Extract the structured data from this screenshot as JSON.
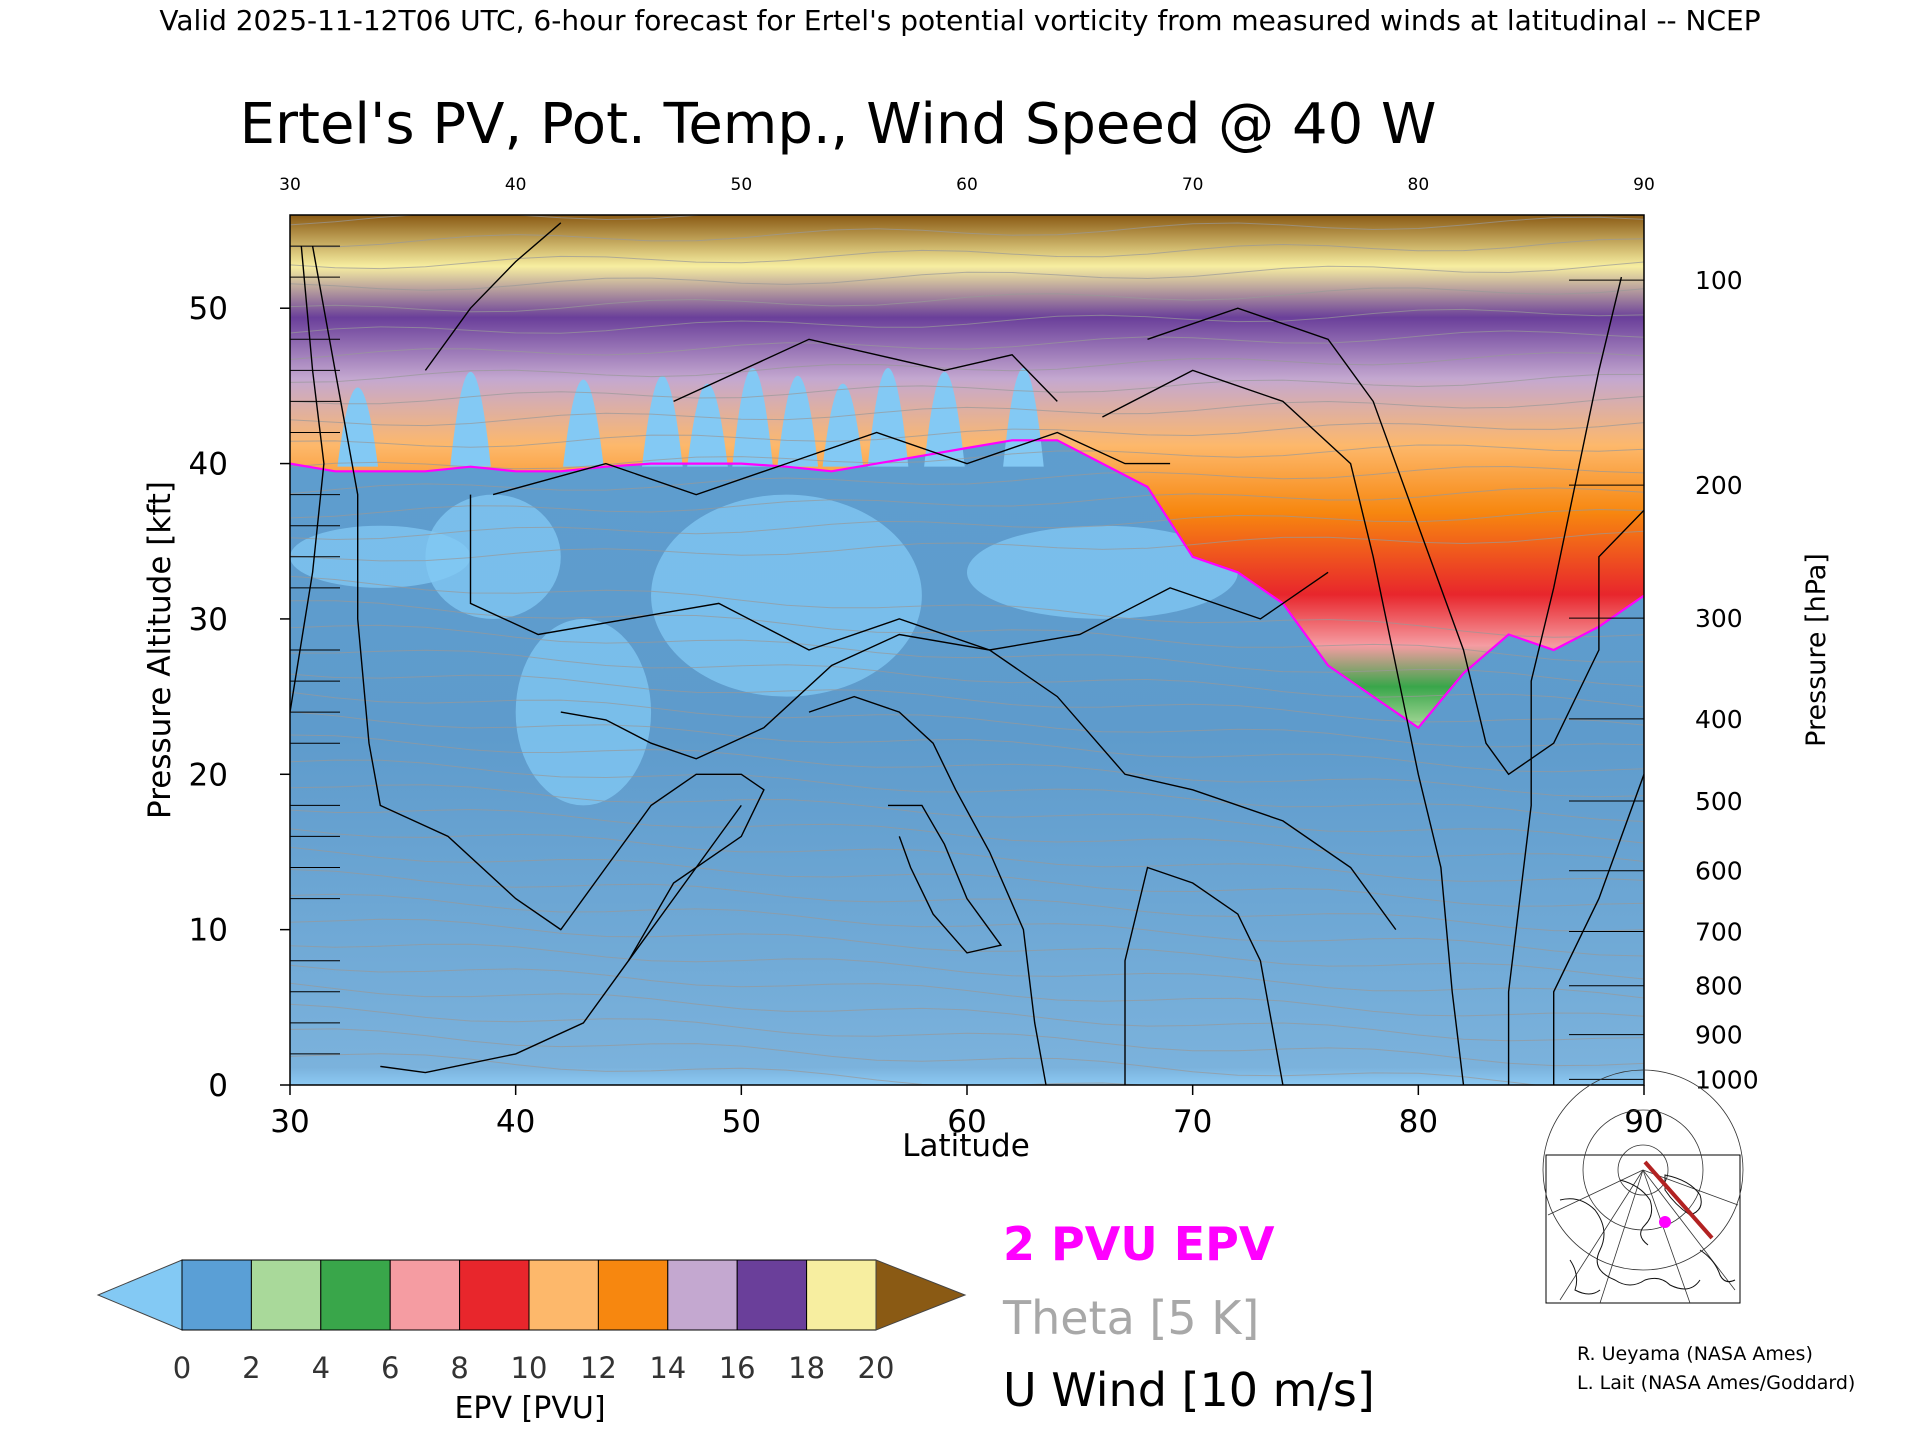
{
  "header": "Valid 2025-11-12T06 UTC, 6-hour forecast for Ertel's potential vorticity from measured winds at latitudinal -- NCEP",
  "title": "Ertel's PV, Pot. Temp., Wind Speed @ 40 W",
  "chart_data": {
    "type": "heatmap",
    "title": "Ertel's PV, Pot. Temp., Wind Speed @ 40 W",
    "xlabel": "Latitude",
    "ylabel": "Pressure Altitude [kft]",
    "ylabel_right": "Pressure [hPa]",
    "xlim": [
      30,
      90
    ],
    "ylim": [
      0,
      56
    ],
    "x_ticks": [
      "30",
      "40",
      "50",
      "60",
      "70",
      "80",
      "90"
    ],
    "y_ticks": [
      "0",
      "10",
      "20",
      "30",
      "40",
      "50"
    ],
    "pressure_ticks": [
      "100",
      "200",
      "300",
      "400",
      "500",
      "600",
      "700",
      "800",
      "900",
      "1000"
    ],
    "grid": false,
    "tropopause_2pvu_kft": {
      "lat": [
        30,
        32,
        34,
        36,
        38,
        40,
        42,
        44,
        46,
        48,
        50,
        52,
        54,
        56,
        58,
        60,
        62,
        64,
        66,
        68,
        70,
        72,
        74,
        76,
        78,
        80,
        82,
        84,
        86,
        88,
        90
      ],
      "alt": [
        40,
        39.5,
        39.5,
        39.5,
        39.8,
        39.5,
        39.5,
        39.8,
        40,
        40,
        40,
        39.8,
        39.5,
        40,
        40.5,
        41,
        41.5,
        41.5,
        40,
        38.5,
        34,
        33,
        31,
        27,
        25,
        23,
        26.5,
        29,
        28,
        29.5,
        31.5
      ]
    },
    "u_wind_contours_ms": [
      "0",
      "10",
      "20",
      "30",
      "40",
      "50"
    ],
    "colorbar": {
      "label": "EPV [PVU]",
      "ticks": [
        "0",
        "2",
        "4",
        "6",
        "8",
        "10",
        "12",
        "14",
        "16",
        "18",
        "20"
      ],
      "colors": [
        "#83c9f4",
        "#5a9fd6",
        "#a9d99a",
        "#39a64a",
        "#f59ca2",
        "#e8262c",
        "#fdb86b",
        "#f7870f",
        "#c4a8d0",
        "#6a3f9a",
        "#f7eea0",
        "#8a5a14"
      ]
    }
  },
  "legend": {
    "pvu": "2 PVU EPV",
    "theta": "Theta [5 K]",
    "uwind": "U Wind [10 m/s]"
  },
  "credits": {
    "line1": "R. Ueyama (NASA Ames)",
    "line2": "L. Lait (NASA Ames/Goddard)"
  },
  "colors": {
    "pvu_line": "#ff00ff",
    "theta_line": "#999999",
    "wind_line": "#000000",
    "track": "#b22222"
  }
}
